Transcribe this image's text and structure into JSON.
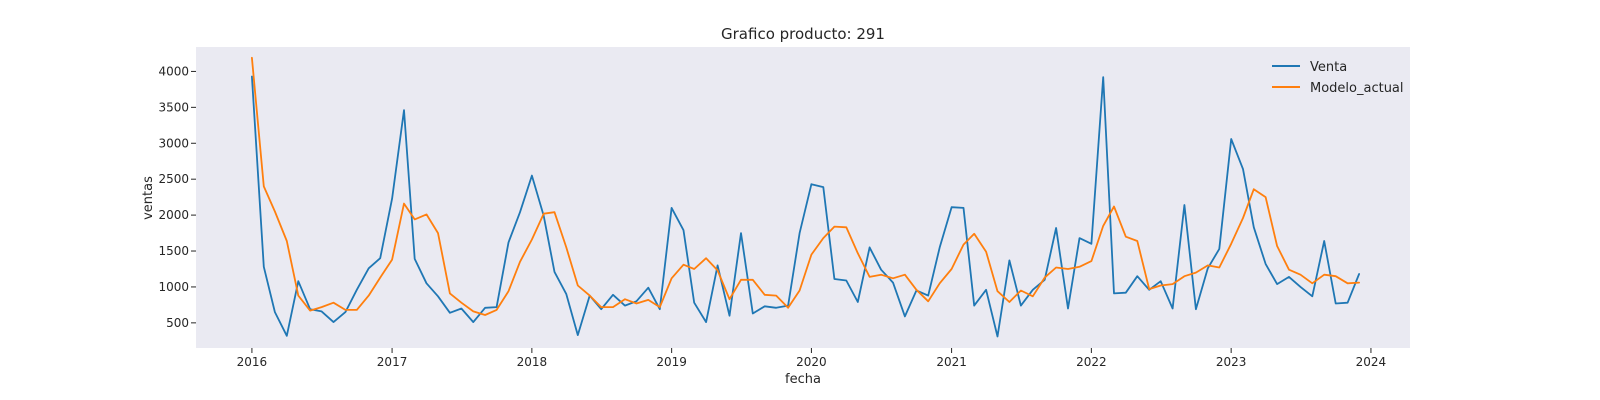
{
  "chart_data": {
    "type": "line",
    "title": "Grafico producto: 291",
    "xlabel": "fecha",
    "ylabel": "ventas",
    "x_unit": "date",
    "xlim": [
      "2015-08-08",
      "2024-04-12"
    ],
    "ylim": [
      150,
      4340
    ],
    "x_ticks": [
      "2016-01-01",
      "2017-01-01",
      "2018-01-01",
      "2019-01-01",
      "2020-01-01",
      "2021-01-01",
      "2022-01-01",
      "2023-01-01",
      "2024-01-01"
    ],
    "x_tick_labels": [
      "2016",
      "2017",
      "2018",
      "2019",
      "2020",
      "2021",
      "2022",
      "2023",
      "2024"
    ],
    "y_ticks": [
      500,
      1000,
      1500,
      2000,
      2500,
      3000,
      3500,
      4000
    ],
    "y_tick_labels": [
      "500",
      "1000",
      "1500",
      "2000",
      "2500",
      "3000",
      "3500",
      "4000"
    ],
    "grid": false,
    "legend_position": "top-right",
    "colors": {
      "background": "#eaeaf2",
      "text": "#262626"
    },
    "x": [
      "2016-01",
      "2016-02",
      "2016-03",
      "2016-04",
      "2016-05",
      "2016-06",
      "2016-07",
      "2016-08",
      "2016-09",
      "2016-10",
      "2016-11",
      "2016-12",
      "2017-01",
      "2017-02",
      "2017-03",
      "2017-04",
      "2017-05",
      "2017-06",
      "2017-07",
      "2017-08",
      "2017-09",
      "2017-10",
      "2017-11",
      "2017-12",
      "2018-01",
      "2018-02",
      "2018-03",
      "2018-04",
      "2018-05",
      "2018-06",
      "2018-07",
      "2018-08",
      "2018-09",
      "2018-10",
      "2018-11",
      "2018-12",
      "2019-01",
      "2019-02",
      "2019-03",
      "2019-04",
      "2019-05",
      "2019-06",
      "2019-07",
      "2019-08",
      "2019-09",
      "2019-10",
      "2019-11",
      "2019-12",
      "2020-01",
      "2020-02",
      "2020-03",
      "2020-04",
      "2020-05",
      "2020-06",
      "2020-07",
      "2020-08",
      "2020-09",
      "2020-10",
      "2020-11",
      "2020-12",
      "2021-01",
      "2021-02",
      "2021-03",
      "2021-04",
      "2021-05",
      "2021-06",
      "2021-07",
      "2021-08",
      "2021-09",
      "2021-10",
      "2021-11",
      "2021-12",
      "2022-01",
      "2022-02",
      "2022-03",
      "2022-04",
      "2022-05",
      "2022-06",
      "2022-07",
      "2022-08",
      "2022-09",
      "2022-10",
      "2022-11",
      "2022-12",
      "2023-01",
      "2023-02",
      "2023-03",
      "2023-04",
      "2023-05",
      "2023-06",
      "2023-07",
      "2023-08",
      "2023-09",
      "2023-10",
      "2023-11",
      "2023-12"
    ],
    "series": [
      {
        "name": "Venta",
        "color": "#1f77b4",
        "values": [
          3930,
          1280,
          650,
          320,
          1080,
          690,
          660,
          510,
          650,
          960,
          1260,
          1400,
          2230,
          3460,
          1390,
          1050,
          870,
          640,
          700,
          510,
          710,
          720,
          1620,
          2040,
          2550,
          1990,
          1210,
          900,
          330,
          880,
          690,
          890,
          740,
          800,
          990,
          690,
          2100,
          1790,
          780,
          510,
          1300,
          600,
          1750,
          630,
          730,
          710,
          740,
          1750,
          2430,
          2390,
          1110,
          1090,
          790,
          1550,
          1240,
          1060,
          590,
          950,
          880,
          1550,
          2110,
          2100,
          740,
          960,
          310,
          1370,
          740,
          960,
          1100,
          1820,
          700,
          1680,
          1600,
          3920,
          910,
          920,
          1150,
          960,
          1080,
          700,
          2140,
          690,
          1260,
          1530,
          3060,
          2640,
          1830,
          1320,
          1040,
          1140,
          1000,
          870,
          1640,
          770,
          780,
          1180
        ]
      },
      {
        "name": "Modelo_actual",
        "color": "#ff7f0e",
        "values": [
          4190,
          2400,
          2050,
          1640,
          880,
          670,
          720,
          780,
          680,
          680,
          880,
          1130,
          1380,
          2160,
          1940,
          2010,
          1750,
          910,
          780,
          660,
          610,
          680,
          940,
          1350,
          1660,
          2020,
          2040,
          1550,
          1020,
          880,
          720,
          720,
          830,
          770,
          820,
          720,
          1120,
          1310,
          1250,
          1400,
          1230,
          830,
          1100,
          1100,
          890,
          880,
          710,
          950,
          1450,
          1680,
          1840,
          1830,
          1470,
          1140,
          1170,
          1120,
          1170,
          960,
          800,
          1050,
          1250,
          1590,
          1740,
          1490,
          940,
          790,
          950,
          870,
          1130,
          1270,
          1250,
          1280,
          1360,
          1850,
          2120,
          1700,
          1640,
          970,
          1020,
          1040,
          1150,
          1200,
          1300,
          1270,
          1600,
          1960,
          2360,
          2250,
          1570,
          1240,
          1170,
          1050,
          1170,
          1150,
          1050,
          1060
        ]
      }
    ]
  }
}
